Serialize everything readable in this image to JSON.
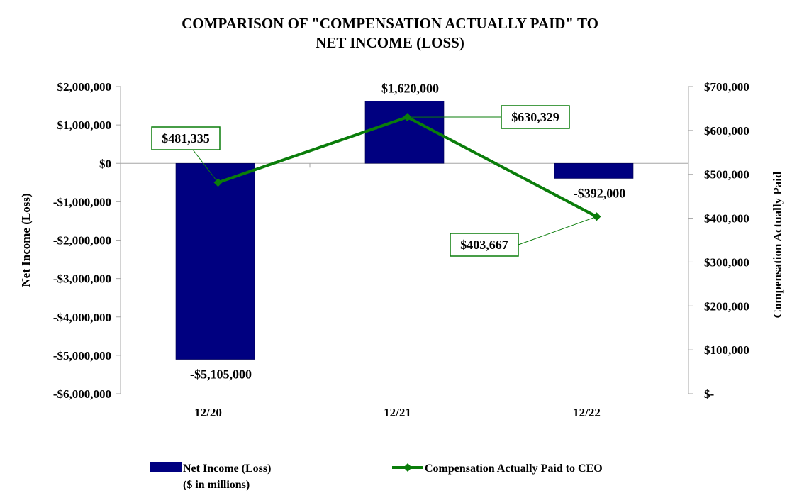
{
  "chart_data": {
    "type": "bar+line",
    "title": [
      "COMPARISON OF \"COMPENSATION ACTUALLY PAID\" TO",
      "NET INCOME (LOSS)"
    ],
    "categories": [
      "12/20",
      "12/21",
      "12/22"
    ],
    "left_axis": {
      "label": "Net Income (Loss)",
      "ylim": [
        -6000000,
        2000000
      ],
      "ticks": [
        2000000,
        1000000,
        0,
        -1000000,
        -2000000,
        -3000000,
        -4000000,
        -5000000,
        -6000000
      ],
      "tick_labels": [
        "$2,000,000",
        "$1,000,000",
        "$0",
        "-$1,000,000",
        "-$2,000,000",
        "-$3,000,000",
        "-$4,000,000",
        "-$5,000,000",
        "-$6,000,000"
      ]
    },
    "right_axis": {
      "label": "Compensation Actually Paid",
      "ylim": [
        0,
        700000
      ],
      "ticks": [
        700000,
        600000,
        500000,
        400000,
        300000,
        200000,
        100000,
        0
      ],
      "tick_labels": [
        "$700,000",
        "$600,000",
        "$500,000",
        "$400,000",
        "$300,000",
        "$200,000",
        "$100,000",
        "$-"
      ]
    },
    "series": [
      {
        "name": "Net Income (Loss)",
        "legend_lines": [
          "Net Income (Loss)",
          "($ in millions)"
        ],
        "type": "bar",
        "axis": "left",
        "color": "#000080",
        "values": [
          -5105000,
          1620000,
          -392000
        ],
        "labels": [
          "-$5,105,000",
          "$1,620,000",
          "-$392,000"
        ]
      },
      {
        "name": "Compensation Actually Paid to CEO",
        "legend_lines": [
          "Compensation Actually Paid to CEO"
        ],
        "type": "line",
        "axis": "right",
        "color": "#0a7d0a",
        "values": [
          481335,
          630329,
          403667
        ],
        "labels": [
          "$481,335",
          "$630,329",
          "$403,667"
        ]
      }
    ],
    "legend_position": "bottom",
    "grid": false
  }
}
